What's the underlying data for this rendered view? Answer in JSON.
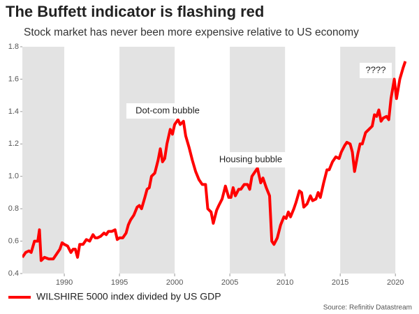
{
  "chart_data": {
    "type": "line",
    "title": "The Buffett indicator is flashing red",
    "subtitle": "Stock market has never been more expensive relative to US economy",
    "source": "Source: Refinitiv Datastream",
    "annotations": [
      "Dot-com bubble",
      "Housing bubble",
      "????"
    ],
    "xlim": [
      1986.2,
      2021.0
    ],
    "ylim": [
      0.4,
      1.8
    ],
    "xticks": [
      1990,
      1995,
      2000,
      2005,
      2010,
      2015,
      2020
    ],
    "yticks": [
      0.4,
      0.6,
      0.8,
      {
        "value": 1,
        "label": "1.0"
      },
      1.2,
      1.4,
      1.6,
      1.8
    ],
    "shaded_alternating_bands": true,
    "x": [
      1986.2,
      1986.5,
      1986.8,
      1987.0,
      1987.3,
      1987.6,
      1987.75,
      1987.9,
      1988.2,
      1988.6,
      1989.0,
      1989.3,
      1989.6,
      1989.8,
      1990.0,
      1990.3,
      1990.6,
      1990.8,
      1991.0,
      1991.2,
      1991.4,
      1991.7,
      1992.0,
      1992.3,
      1992.6,
      1992.8,
      1993.0,
      1993.3,
      1993.6,
      1993.8,
      1994.0,
      1994.3,
      1994.6,
      1994.8,
      1995.0,
      1995.3,
      1995.6,
      1995.8,
      1996.0,
      1996.3,
      1996.6,
      1996.8,
      1997.0,
      1997.3,
      1997.5,
      1997.7,
      1997.9,
      1998.2,
      1998.5,
      1998.7,
      1998.9,
      1999.1,
      1999.3,
      1999.6,
      1999.8,
      2000.0,
      2000.3,
      2000.5,
      2000.8,
      2001.0,
      2001.3,
      2001.6,
      2001.9,
      2002.2,
      2002.5,
      2002.8,
      2003.0,
      2003.3,
      2003.5,
      2003.8,
      2004.0,
      2004.3,
      2004.6,
      2004.9,
      2005.1,
      2005.3,
      2005.5,
      2005.8,
      2006.0,
      2006.3,
      2006.6,
      2006.8,
      2007.0,
      2007.3,
      2007.5,
      2007.8,
      2008.0,
      2008.3,
      2008.6,
      2008.8,
      2009.0,
      2009.3,
      2009.6,
      2009.9,
      2010.1,
      2010.3,
      2010.5,
      2010.8,
      2011.0,
      2011.3,
      2011.5,
      2011.7,
      2012.0,
      2012.3,
      2012.5,
      2012.8,
      2013.0,
      2013.2,
      2013.5,
      2013.8,
      2014.0,
      2014.3,
      2014.6,
      2014.9,
      2015.1,
      2015.4,
      2015.6,
      2015.9,
      2016.1,
      2016.3,
      2016.6,
      2016.8,
      2017.0,
      2017.3,
      2017.6,
      2017.9,
      2018.1,
      2018.3,
      2018.5,
      2018.7,
      2018.9,
      2019.2,
      2019.4,
      2019.6,
      2019.9,
      2020.1,
      2020.4,
      2020.7,
      2020.9
    ],
    "series": [
      {
        "name": "WILSHIRE 5000 index divided by US GDP",
        "color": "#ff0000",
        "values": [
          0.5,
          0.53,
          0.54,
          0.53,
          0.6,
          0.6,
          0.67,
          0.48,
          0.5,
          0.49,
          0.49,
          0.52,
          0.55,
          0.59,
          0.58,
          0.57,
          0.53,
          0.55,
          0.55,
          0.5,
          0.58,
          0.58,
          0.61,
          0.6,
          0.64,
          0.62,
          0.62,
          0.63,
          0.65,
          0.64,
          0.66,
          0.66,
          0.67,
          0.61,
          0.62,
          0.62,
          0.65,
          0.7,
          0.73,
          0.76,
          0.81,
          0.82,
          0.8,
          0.87,
          0.92,
          0.93,
          1.0,
          1.02,
          1.1,
          1.17,
          1.09,
          1.11,
          1.2,
          1.29,
          1.26,
          1.32,
          1.35,
          1.32,
          1.34,
          1.25,
          1.18,
          1.1,
          1.03,
          0.98,
          0.95,
          0.95,
          0.8,
          0.78,
          0.71,
          0.79,
          0.82,
          0.86,
          0.94,
          0.87,
          0.87,
          0.93,
          0.88,
          0.92,
          0.92,
          0.95,
          0.95,
          0.92,
          1.0,
          1.03,
          1.05,
          0.96,
          0.99,
          0.93,
          0.88,
          0.6,
          0.58,
          0.62,
          0.7,
          0.75,
          0.74,
          0.78,
          0.75,
          0.8,
          0.84,
          0.91,
          0.9,
          0.81,
          0.83,
          0.88,
          0.85,
          0.86,
          0.9,
          0.87,
          0.96,
          1.04,
          1.04,
          1.09,
          1.12,
          1.11,
          1.15,
          1.19,
          1.21,
          1.2,
          1.15,
          1.03,
          1.14,
          1.2,
          1.2,
          1.27,
          1.29,
          1.31,
          1.38,
          1.37,
          1.41,
          1.34,
          1.36,
          1.37,
          1.35,
          1.48,
          1.6,
          1.48,
          1.6,
          1.67,
          1.71
        ]
      }
    ]
  }
}
